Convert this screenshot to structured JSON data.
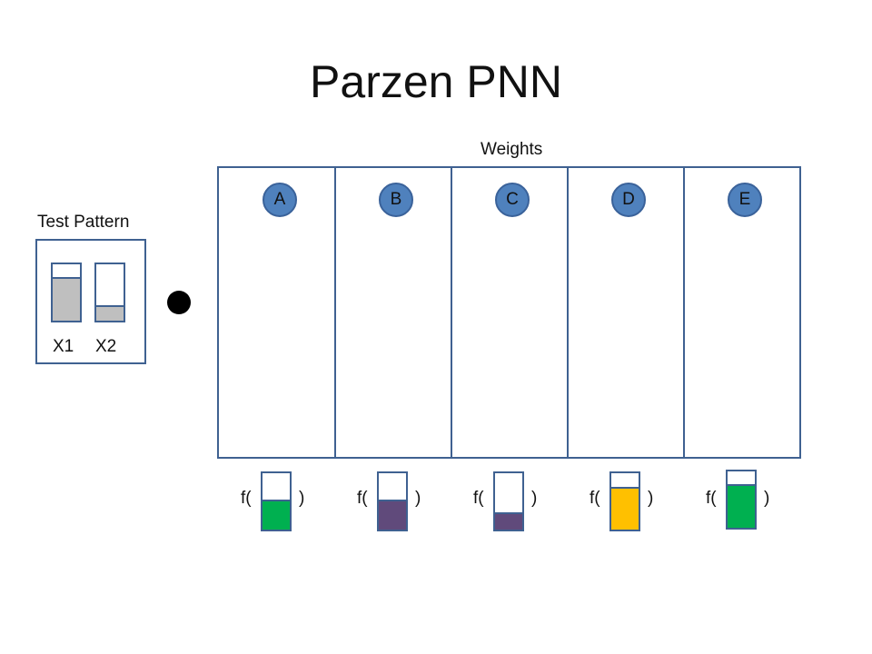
{
  "title": "Parzen PNN",
  "weights_label": "Weights",
  "test_pattern": {
    "label": "Test Pattern",
    "inputs": [
      {
        "label": "X1",
        "level": 0.75,
        "color": "#bfbfbf"
      },
      {
        "label": "X2",
        "level": 0.25,
        "color": "#bfbfbf"
      }
    ]
  },
  "operator": "dot-product",
  "weights": [
    {
      "label": "A"
    },
    {
      "label": "B"
    },
    {
      "label": "C"
    },
    {
      "label": "D"
    },
    {
      "label": "E"
    }
  ],
  "outputs": [
    {
      "open": "f(",
      "close": ")",
      "level": 0.5,
      "color": "#00b050"
    },
    {
      "open": "f(",
      "close": ")",
      "level": 0.5,
      "color": "#604a7b"
    },
    {
      "open": "f(",
      "close": ")",
      "level": 0.28,
      "color": "#604a7b"
    },
    {
      "open": "f(",
      "close": ")",
      "level": 0.73,
      "color": "#ffc000"
    },
    {
      "open": "f(",
      "close": ")",
      "level": 0.75,
      "color": "#00b050"
    }
  ]
}
